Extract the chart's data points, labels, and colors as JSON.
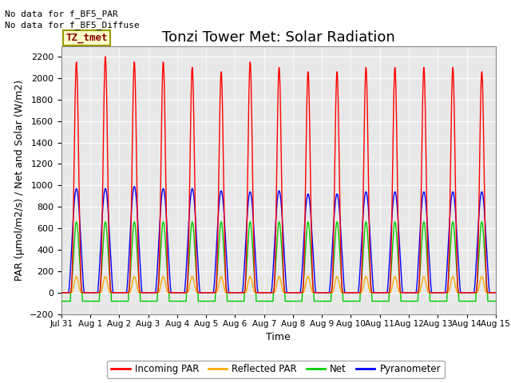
{
  "title": "Tonzi Tower Met: Solar Radiation",
  "ylabel": "PAR (μmol/m2/s) / Net and Solar (W/m2)",
  "xlabel": "Time",
  "ylim": [
    -200,
    2300
  ],
  "yticks": [
    -200,
    0,
    200,
    400,
    600,
    800,
    1000,
    1200,
    1400,
    1600,
    1800,
    2000,
    2200
  ],
  "xtick_labels": [
    "Jul 31",
    "Aug 1",
    "Aug 2",
    "Aug 3",
    "Aug 4",
    "Aug 5",
    "Aug 6",
    "Aug 7",
    "Aug 8",
    "Aug 9",
    "Aug 10",
    "Aug 11",
    "Aug 12",
    "Aug 13",
    "Aug 14",
    "Aug 15"
  ],
  "incoming_peaks": [
    2150,
    2200,
    2150,
    2150,
    2100,
    2060,
    2150,
    2100,
    2060,
    2060,
    2100,
    2100,
    2100,
    2100,
    2060
  ],
  "reflected_par_peak": 150,
  "net_peak": 660,
  "pyranometer_peaks": [
    970,
    970,
    990,
    970,
    970,
    950,
    940,
    950,
    920,
    920,
    940,
    940,
    940,
    940,
    940
  ],
  "net_night": -80,
  "legend_labels": [
    "Incoming PAR",
    "Reflected PAR",
    "Net",
    "Pyranometer"
  ],
  "legend_colors": [
    "#ff0000",
    "#ffaa00",
    "#00cc00",
    "#0000ff"
  ],
  "annotation_text1": "No data for f_BF5_PAR",
  "annotation_text2": "No data for f_BF5_Diffuse",
  "dataset_label": "TZ_tmet",
  "background_color": "#e8e8e8",
  "grid_color": "#ffffff",
  "title_fontsize": 13,
  "label_fontsize": 9,
  "tick_fontsize": 8,
  "annot_fontsize": 8
}
